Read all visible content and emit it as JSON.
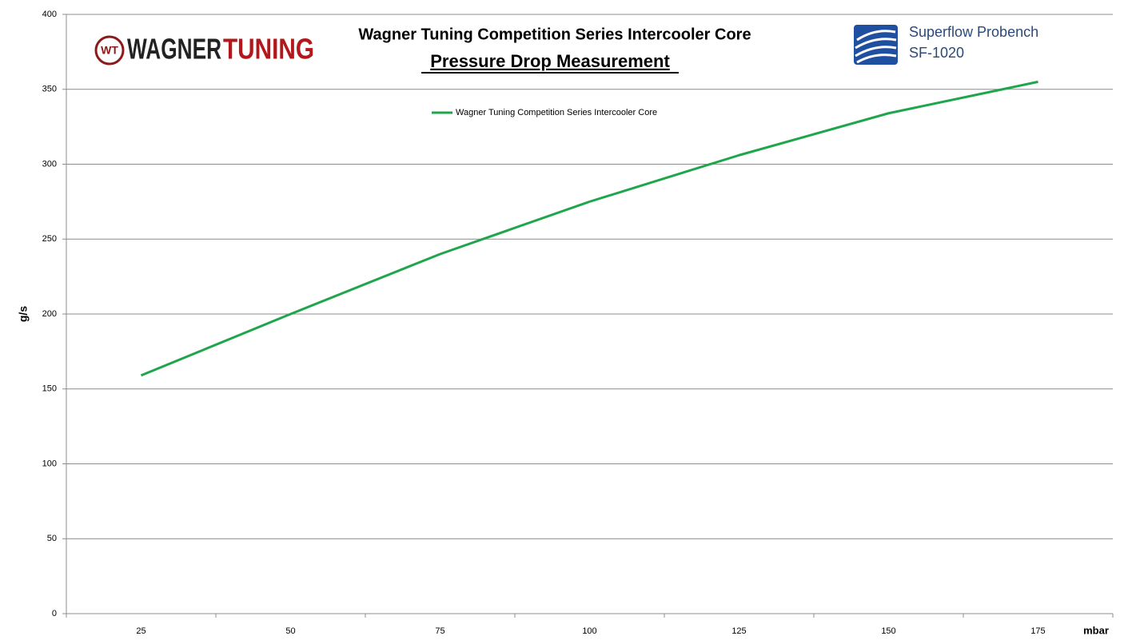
{
  "chart_data": {
    "type": "line",
    "title": "Wagner Tuning Competition Series Intercooler Core",
    "subtitle": "Pressure Drop Measurement",
    "y_label": "g/s",
    "x_label": "mbar",
    "annotations": [
      "WT",
      "WAGNER",
      "TUNING",
      "Superflow Probench",
      "SF-1020"
    ],
    "categories": [
      "25",
      "50",
      "75",
      "100",
      "125",
      "150",
      "175"
    ],
    "series": [
      {
        "name": "Wagner Tuning Competition Series Intercooler Core",
        "color": "#1fa64c",
        "values": [
          159,
          200,
          240,
          275,
          306,
          334,
          355
        ]
      }
    ],
    "ylim": [
      0,
      400
    ],
    "yticks": [
      0,
      50,
      100,
      150,
      200,
      250,
      300,
      350,
      400
    ],
    "grid": true
  }
}
